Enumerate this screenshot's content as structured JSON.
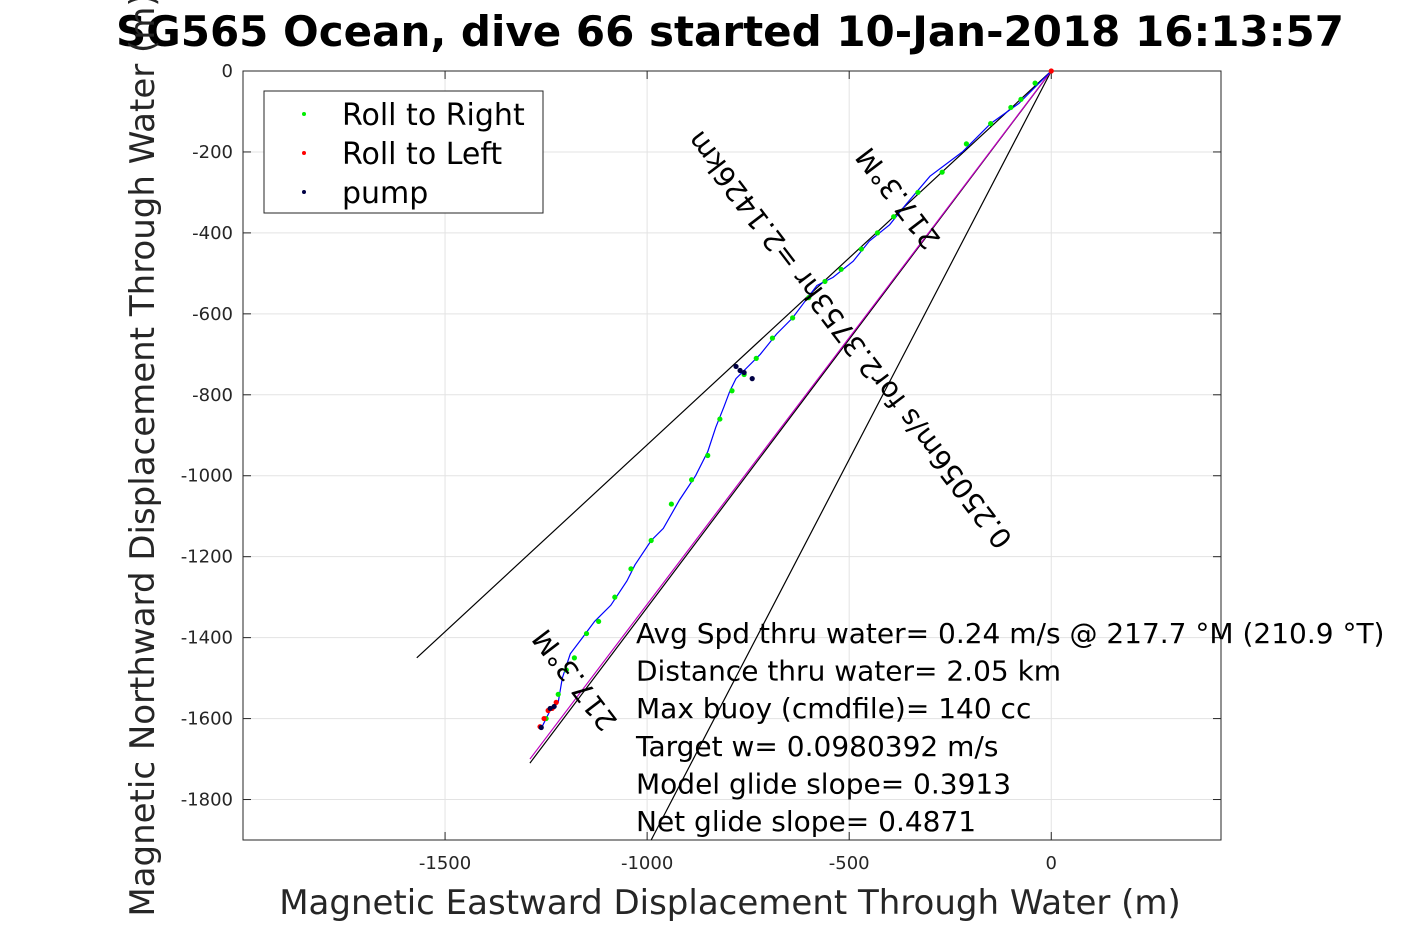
{
  "chart_data": {
    "type": "line",
    "title": "SG565 Ocean, dive 66 started 10-Jan-2018 16:13:57",
    "xlabel": "Magnetic Eastward Displacement Through Water (m)",
    "ylabel": "Magnetic Northward Displacement Through Water (m)",
    "xlim": [
      -2000,
      420
    ],
    "ylim": [
      -1900,
      0
    ],
    "xticks": [
      -1500,
      -1000,
      -500,
      0
    ],
    "xtick_labels": [
      "-1500",
      "-1000",
      "-500",
      "0"
    ],
    "yticks": [
      0,
      -200,
      -400,
      -600,
      -800,
      -1000,
      -1200,
      -1400,
      -1600,
      -1800
    ],
    "ytick_labels": [
      "0",
      "-200",
      "-400",
      "-600",
      "-800",
      "-1000",
      "-1200",
      "-1400",
      "-1600",
      "-1800"
    ],
    "grid": true,
    "legend": {
      "placement": "top-left",
      "entries": [
        {
          "label": "Roll to Right",
          "color": "#00ee00"
        },
        {
          "label": "Roll to Left",
          "color": "#ff0000"
        },
        {
          "label": "pump",
          "color": "#000044"
        }
      ]
    },
    "track": {
      "color": "#0000ff",
      "points": [
        [
          0,
          0
        ],
        [
          -30,
          -30
        ],
        [
          -80,
          -80
        ],
        [
          -150,
          -130
        ],
        [
          -220,
          -200
        ],
        [
          -300,
          -260
        ],
        [
          -360,
          -330
        ],
        [
          -400,
          -380
        ],
        [
          -450,
          -420
        ],
        [
          -490,
          -470
        ],
        [
          -540,
          -510
        ],
        [
          -580,
          -530
        ],
        [
          -610,
          -570
        ],
        [
          -640,
          -610
        ],
        [
          -680,
          -650
        ],
        [
          -720,
          -700
        ],
        [
          -760,
          -740
        ],
        [
          -780,
          -760
        ],
        [
          -795,
          -790
        ],
        [
          -810,
          -830
        ],
        [
          -830,
          -880
        ],
        [
          -850,
          -940
        ],
        [
          -880,
          -1000
        ],
        [
          -920,
          -1060
        ],
        [
          -960,
          -1130
        ],
        [
          -990,
          -1160
        ],
        [
          -1030,
          -1220
        ],
        [
          -1050,
          -1260
        ],
        [
          -1090,
          -1320
        ],
        [
          -1130,
          -1360
        ],
        [
          -1160,
          -1400
        ],
        [
          -1190,
          -1440
        ],
        [
          -1210,
          -1500
        ],
        [
          -1220,
          -1560
        ],
        [
          -1240,
          -1580
        ],
        [
          -1260,
          -1620
        ]
      ]
    },
    "roll_right_points": [
      [
        -40,
        -30
      ],
      [
        -75,
        -70
      ],
      [
        -100,
        -90
      ],
      [
        -150,
        -130
      ],
      [
        -210,
        -180
      ],
      [
        -270,
        -250
      ],
      [
        -330,
        -300
      ],
      [
        -390,
        -360
      ],
      [
        -430,
        -400
      ],
      [
        -470,
        -440
      ],
      [
        -520,
        -490
      ],
      [
        -560,
        -520
      ],
      [
        -600,
        -560
      ],
      [
        -640,
        -610
      ],
      [
        -690,
        -660
      ],
      [
        -730,
        -710
      ],
      [
        -760,
        -750
      ],
      [
        -790,
        -790
      ],
      [
        -820,
        -860
      ],
      [
        -850,
        -950
      ],
      [
        -890,
        -1010
      ],
      [
        -940,
        -1070
      ],
      [
        -990,
        -1160
      ],
      [
        -1040,
        -1230
      ],
      [
        -1080,
        -1300
      ],
      [
        -1120,
        -1360
      ],
      [
        -1150,
        -1390
      ],
      [
        -1180,
        -1450
      ],
      [
        -1200,
        -1480
      ],
      [
        -1220,
        -1540
      ],
      [
        -1250,
        -1600
      ]
    ],
    "roll_left_points": [
      [
        0,
        0
      ],
      [
        -1225,
        -1560
      ],
      [
        -1235,
        -1575
      ],
      [
        -1245,
        -1580
      ],
      [
        -1255,
        -1600
      ],
      [
        -1265,
        -1620
      ]
    ],
    "pump_points": [
      [
        -740,
        -760
      ],
      [
        -760,
        -745
      ],
      [
        -770,
        -740
      ],
      [
        -780,
        -730
      ],
      [
        -1230,
        -1570
      ],
      [
        -1240,
        -1575
      ],
      [
        -1262,
        -1622
      ]
    ],
    "reference_lines": [
      {
        "color": "#000000",
        "from": [
          0,
          0
        ],
        "to": [
          -1570,
          -1450
        ]
      },
      {
        "color": "#000000",
        "from": [
          0,
          0
        ],
        "to": [
          -990,
          -1900
        ]
      },
      {
        "color": "#000000",
        "from": [
          0,
          0
        ],
        "to": [
          -1290,
          -1710
        ]
      },
      {
        "color": "#c000c0",
        "from": [
          0,
          0
        ],
        "to": [
          -1290,
          -1700
        ]
      }
    ],
    "rotated_labels": [
      {
        "text": "217.3°M",
        "anchor": [
          -1160,
          -1490
        ],
        "angle": 232.7
      },
      {
        "text": "217.3°M",
        "anchor": [
          -360,
          -300
        ],
        "angle": 232.7
      },
      {
        "text": "0.25056m/s for2.3753hr =2.1426km",
        "anchor": [
          -480,
          -650
        ],
        "angle": 232.7
      }
    ],
    "annotations": [
      "Avg Spd thru water=  0.24 m/s @ 217.7 °M (210.9 °T)",
      "Distance thru water=  2.05 km",
      "Max buoy (cmdfile)= 140 cc",
      "Target w= 0.0980392 m/s",
      "Model glide slope= 0.3913",
      "Net glide slope= 0.4871"
    ]
  }
}
